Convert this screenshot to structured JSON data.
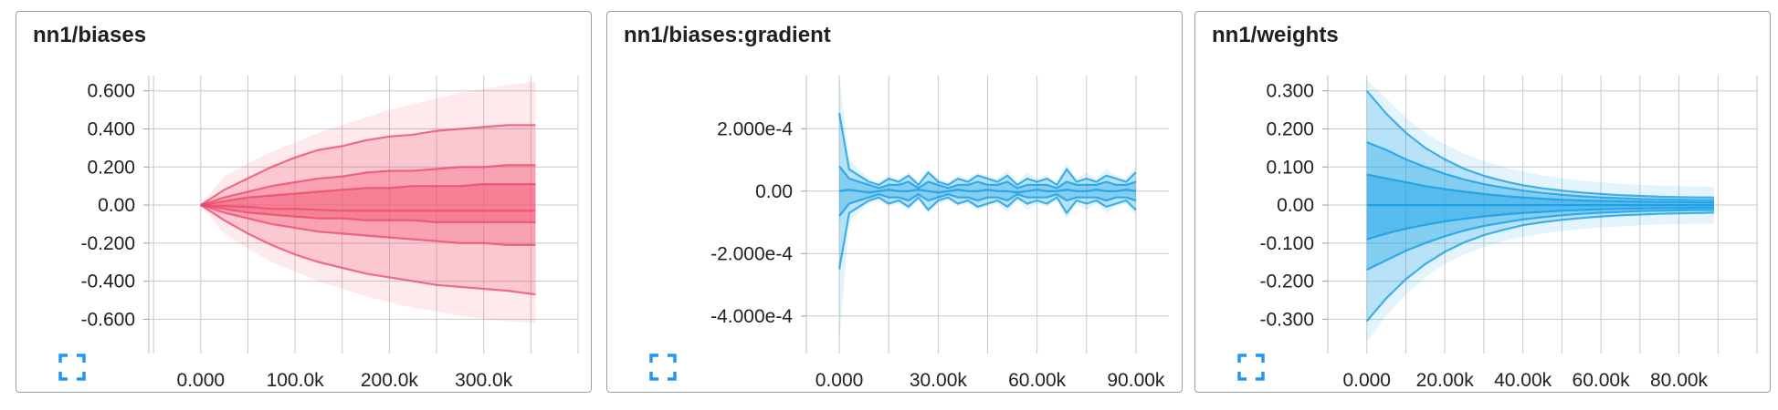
{
  "icons": {
    "expand": "fullscreen-expand-icon"
  },
  "colors": {
    "pink": "#f3546f",
    "pink_line": "#e9476a",
    "blue": "#1aa4e8",
    "blue_line": "#0f9ae3",
    "grid": "#c8c8c8",
    "expand_icon": "#2196f3"
  },
  "cards": [
    {
      "title": "nn1/biases",
      "color": "pink",
      "chart_data": {
        "type": "area",
        "xlim": [
          -55000,
          400000
        ],
        "ylim": [
          -0.78,
          0.68
        ],
        "x_ticks": [
          0,
          100000,
          200000,
          300000
        ],
        "x_tick_labels": [
          "0.000",
          "100.0k",
          "200.0k",
          "300.0k"
        ],
        "y_ticks": [
          0.6,
          0.4,
          0.2,
          0,
          -0.2,
          -0.4,
          -0.6
        ],
        "y_tick_labels": [
          "0.600",
          "0.400",
          "0.200",
          "0.00",
          "-0.200",
          "-0.400",
          "-0.600"
        ],
        "x": [
          0,
          25000,
          50000,
          75000,
          100000,
          125000,
          150000,
          175000,
          200000,
          225000,
          250000,
          275000,
          300000,
          325000,
          355000
        ],
        "series": [
          {
            "values": [
              0,
              0.15,
              0.22,
              0.28,
              0.33,
              0.38,
              0.42,
              0.46,
              0.5,
              0.53,
              0.56,
              0.59,
              0.61,
              0.63,
              0.65
            ]
          },
          {
            "values": [
              0,
              0.08,
              0.14,
              0.2,
              0.25,
              0.29,
              0.31,
              0.34,
              0.36,
              0.37,
              0.39,
              0.4,
              0.41,
              0.42,
              0.42
            ]
          },
          {
            "values": [
              0,
              0.04,
              0.07,
              0.1,
              0.12,
              0.14,
              0.15,
              0.17,
              0.18,
              0.18,
              0.19,
              0.2,
              0.2,
              0.21,
              0.21
            ]
          },
          {
            "values": [
              0,
              0.02,
              0.04,
              0.05,
              0.06,
              0.07,
              0.08,
              0.09,
              0.09,
              0.1,
              0.1,
              0.1,
              0.11,
              0.11,
              0.11
            ]
          },
          {
            "values": [
              0,
              -0.005,
              -0.01,
              -0.02,
              -0.02,
              -0.025,
              -0.03,
              -0.03,
              -0.03,
              -0.03,
              -0.03,
              -0.03,
              -0.03,
              -0.03,
              -0.03
            ]
          },
          {
            "values": [
              0,
              -0.02,
              -0.04,
              -0.05,
              -0.06,
              -0.07,
              -0.07,
              -0.08,
              -0.08,
              -0.08,
              -0.09,
              -0.09,
              -0.09,
              -0.09,
              -0.09
            ]
          },
          {
            "values": [
              0,
              -0.04,
              -0.07,
              -0.1,
              -0.12,
              -0.14,
              -0.15,
              -0.16,
              -0.17,
              -0.18,
              -0.19,
              -0.2,
              -0.2,
              -0.21,
              -0.21
            ]
          },
          {
            "values": [
              0,
              -0.08,
              -0.15,
              -0.21,
              -0.26,
              -0.3,
              -0.33,
              -0.36,
              -0.38,
              -0.4,
              -0.42,
              -0.43,
              -0.44,
              -0.45,
              -0.47
            ]
          },
          {
            "values": [
              0,
              -0.15,
              -0.23,
              -0.3,
              -0.35,
              -0.4,
              -0.44,
              -0.48,
              -0.51,
              -0.54,
              -0.56,
              -0.58,
              -0.6,
              -0.61,
              -0.62
            ]
          }
        ]
      }
    },
    {
      "title": "nn1/biases:gradient",
      "color": "blue",
      "chart_data": {
        "type": "area",
        "xlim": [
          -10000,
          100000
        ],
        "ylim": [
          -0.00052,
          0.00037
        ],
        "x_ticks": [
          0,
          30000,
          60000,
          90000
        ],
        "x_tick_labels": [
          "0.000",
          "30.00k",
          "60.00k",
          "90.00k"
        ],
        "y_ticks": [
          0.0002,
          0,
          -0.0002,
          -0.0004
        ],
        "y_tick_labels": [
          "2.000e-4",
          "0.00",
          "-2.000e-4",
          "-4.000e-4"
        ],
        "x": [
          0,
          3000,
          6000,
          9000,
          12000,
          15000,
          18000,
          21000,
          24000,
          27000,
          30000,
          33000,
          36000,
          39000,
          42000,
          45000,
          48000,
          51000,
          54000,
          57000,
          60000,
          63000,
          66000,
          69000,
          72000,
          75000,
          78000,
          81000,
          84000,
          87000,
          90000
        ],
        "series": [
          {
            "values": [
              0.00037,
              0.0001,
              7e-05,
              4e-05,
              3e-05,
              5e-05,
              4e-05,
              6e-05,
              3e-05,
              7e-05,
              4e-05,
              3e-05,
              5e-05,
              4e-05,
              6e-05,
              5e-05,
              4e-05,
              7e-05,
              3e-05,
              6e-05,
              4e-05,
              5e-05,
              3e-05,
              9e-05,
              4e-05,
              6e-05,
              4e-05,
              7e-05,
              5e-05,
              4e-05,
              8e-05
            ]
          },
          {
            "values": [
              0.00025,
              7e-05,
              5e-05,
              3e-05,
              2e-05,
              4e-05,
              3e-05,
              5e-05,
              2e-05,
              6e-05,
              3e-05,
              2e-05,
              4e-05,
              3e-05,
              5e-05,
              4e-05,
              3e-05,
              5e-05,
              2e-05,
              4e-05,
              3e-05,
              4e-05,
              2e-05,
              7e-05,
              3e-05,
              4e-05,
              3e-05,
              5e-05,
              4e-05,
              3e-05,
              6e-05
            ]
          },
          {
            "values": [
              8e-05,
              4e-05,
              3e-05,
              2e-05,
              1e-05,
              2e-05,
              2e-05,
              3e-05,
              1e-05,
              3e-05,
              2e-05,
              1e-05,
              2e-05,
              2e-05,
              3e-05,
              2e-05,
              2e-05,
              3e-05,
              1e-05,
              2e-05,
              2e-05,
              2e-05,
              1e-05,
              3e-05,
              2e-05,
              2e-05,
              2e-05,
              3e-05,
              2e-05,
              2e-05,
              3e-05
            ]
          },
          {
            "values": [
              0,
              5e-06,
              0,
              -5e-06,
              0,
              5e-06,
              0,
              0,
              5e-06,
              0,
              -5e-06,
              0,
              5e-06,
              0,
              0,
              5e-06,
              0,
              0,
              -5e-06,
              0,
              5e-06,
              0,
              0,
              5e-06,
              0,
              0,
              5e-06,
              0,
              0,
              5e-06,
              0
            ]
          },
          {
            "values": [
              -8e-05,
              -4e-05,
              -3e-05,
              -2e-05,
              -1e-05,
              -2e-05,
              -2e-05,
              -3e-05,
              -1e-05,
              -3e-05,
              -2e-05,
              -1e-05,
              -2e-05,
              -2e-05,
              -3e-05,
              -2e-05,
              -2e-05,
              -3e-05,
              -1e-05,
              -2e-05,
              -2e-05,
              -2e-05,
              -1e-05,
              -3e-05,
              -2e-05,
              -2e-05,
              -2e-05,
              -3e-05,
              -2e-05,
              -2e-05,
              -3e-05
            ]
          },
          {
            "values": [
              -0.00025,
              -7e-05,
              -5e-05,
              -3e-05,
              -2e-05,
              -4e-05,
              -3e-05,
              -5e-05,
              -2e-05,
              -6e-05,
              -3e-05,
              -2e-05,
              -4e-05,
              -3e-05,
              -5e-05,
              -4e-05,
              -3e-05,
              -5e-05,
              -2e-05,
              -4e-05,
              -3e-05,
              -4e-05,
              -2e-05,
              -7e-05,
              -3e-05,
              -4e-05,
              -3e-05,
              -5e-05,
              -4e-05,
              -3e-05,
              -6e-05
            ]
          },
          {
            "values": [
              -0.00048,
              -0.0001,
              -7e-05,
              -4e-05,
              -3e-05,
              -5e-05,
              -4e-05,
              -6e-05,
              -3e-05,
              -7e-05,
              -4e-05,
              -3e-05,
              -5e-05,
              -4e-05,
              -6e-05,
              -5e-05,
              -4e-05,
              -7e-05,
              -3e-05,
              -6e-05,
              -4e-05,
              -5e-05,
              -3e-05,
              -9e-05,
              -4e-05,
              -6e-05,
              -4e-05,
              -7e-05,
              -5e-05,
              -4e-05,
              -8e-05
            ]
          }
        ]
      }
    },
    {
      "title": "nn1/weights",
      "color": "blue",
      "chart_data": {
        "type": "area",
        "xlim": [
          -10000,
          100000
        ],
        "ylim": [
          -0.39,
          0.34
        ],
        "x_ticks": [
          0,
          20000,
          40000,
          60000,
          80000
        ],
        "x_tick_labels": [
          "0.000",
          "20.00k",
          "40.00k",
          "60.00k",
          "80.00k"
        ],
        "y_ticks": [
          0.3,
          0.2,
          0.1,
          0,
          -0.1,
          -0.2,
          -0.3
        ],
        "y_tick_labels": [
          "0.300",
          "0.200",
          "0.100",
          "0.00",
          "-0.100",
          "-0.200",
          "-0.300"
        ],
        "x": [
          0,
          5000,
          10000,
          15000,
          20000,
          25000,
          30000,
          35000,
          40000,
          45000,
          50000,
          55000,
          60000,
          65000,
          70000,
          75000,
          80000,
          85000,
          89000
        ],
        "series": [
          {
            "values": [
              0.33,
              0.28,
              0.23,
              0.19,
              0.16,
              0.135,
              0.115,
              0.1,
              0.088,
              0.078,
              0.07,
              0.064,
              0.06,
              0.056,
              0.053,
              0.051,
              0.05,
              0.049,
              0.048
            ]
          },
          {
            "values": [
              0.3,
              0.24,
              0.19,
              0.15,
              0.12,
              0.095,
              0.077,
              0.063,
              0.052,
              0.044,
              0.038,
              0.033,
              0.029,
              0.026,
              0.024,
              0.022,
              0.021,
              0.02,
              0.02
            ]
          },
          {
            "values": [
              0.165,
              0.145,
              0.12,
              0.1,
              0.082,
              0.067,
              0.055,
              0.046,
              0.038,
              0.032,
              0.027,
              0.023,
              0.02,
              0.018,
              0.016,
              0.015,
              0.014,
              0.013,
              0.013
            ]
          },
          {
            "values": [
              0.08,
              0.07,
              0.06,
              0.05,
              0.042,
              0.035,
              0.029,
              0.024,
              0.02,
              0.017,
              0.014,
              0.012,
              0.011,
              0.01,
              0.009,
              0.008,
              0.008,
              0.007,
              0.007
            ]
          },
          {
            "values": [
              0,
              0,
              0,
              0,
              0,
              0,
              0,
              0,
              0,
              0,
              0,
              0,
              0,
              0,
              0,
              0,
              0,
              0,
              0
            ]
          },
          {
            "values": [
              -0.09,
              -0.075,
              -0.062,
              -0.052,
              -0.043,
              -0.036,
              -0.03,
              -0.025,
              -0.021,
              -0.018,
              -0.015,
              -0.013,
              -0.011,
              -0.01,
              -0.009,
              -0.008,
              -0.008,
              -0.007,
              -0.007
            ]
          },
          {
            "values": [
              -0.17,
              -0.145,
              -0.12,
              -0.1,
              -0.082,
              -0.067,
              -0.055,
              -0.046,
              -0.038,
              -0.032,
              -0.027,
              -0.023,
              -0.02,
              -0.018,
              -0.016,
              -0.015,
              -0.014,
              -0.013,
              -0.013
            ]
          },
          {
            "values": [
              -0.305,
              -0.245,
              -0.195,
              -0.155,
              -0.123,
              -0.098,
              -0.079,
              -0.065,
              -0.053,
              -0.045,
              -0.039,
              -0.034,
              -0.03,
              -0.027,
              -0.025,
              -0.023,
              -0.022,
              -0.021,
              -0.02
            ]
          },
          {
            "values": [
              -0.36,
              -0.29,
              -0.235,
              -0.19,
              -0.155,
              -0.13,
              -0.11,
              -0.095,
              -0.084,
              -0.075,
              -0.068,
              -0.063,
              -0.059,
              -0.056,
              -0.053,
              -0.051,
              -0.05,
              -0.049,
              -0.048
            ]
          }
        ]
      }
    }
  ]
}
